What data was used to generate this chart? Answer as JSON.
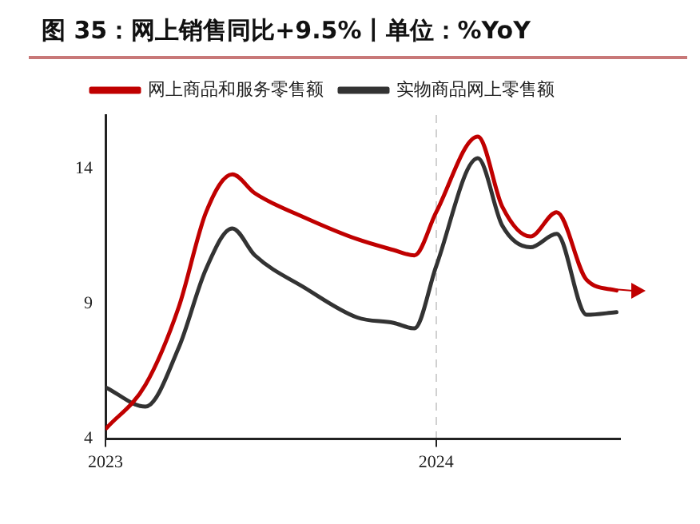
{
  "chart_data": {
    "type": "line",
    "title": "图 35：网上销售同比+9.5%丨单位：%YoY",
    "x": [
      "2023-01-02",
      "2023-02-14",
      "2023-03-23",
      "2023-04-22",
      "2023-05-21",
      "2023-06-15",
      "2023-08-09",
      "2023-10-06",
      "2023-11-15",
      "2023-12-08",
      "2024-01-01",
      "2024-02-16",
      "2024-03-14",
      "2024-04-14",
      "2024-05-13",
      "2024-06-15",
      "2024-07-18"
    ],
    "series": [
      {
        "name": "网上商品和服务零售额",
        "color": "#c00000",
        "values": [
          4.4,
          6.0,
          8.9,
          12.4,
          13.8,
          13.1,
          12.2,
          11.4,
          11.0,
          10.8,
          12.4,
          15.2,
          12.6,
          11.5,
          12.4,
          9.9,
          9.5
        ]
      },
      {
        "name": "实物商品网上零售额",
        "color": "#333333",
        "values": [
          5.9,
          5.2,
          7.4,
          10.3,
          11.8,
          10.8,
          9.6,
          8.5,
          8.3,
          8.1,
          10.4,
          14.4,
          11.9,
          11.1,
          11.6,
          8.6,
          8.7
        ]
      }
    ],
    "xlim": [
      "2023-01-01",
      "2024-07-22"
    ],
    "xticks": [
      {
        "value": "2023-01-01",
        "label": "2023"
      },
      {
        "value": "2024-01-01",
        "label": "2024"
      }
    ],
    "ylim": [
      4,
      16
    ],
    "yticks": [
      4,
      9,
      14
    ],
    "grid": "x",
    "legend": "top",
    "marker": "none",
    "line_style": "solid"
  }
}
